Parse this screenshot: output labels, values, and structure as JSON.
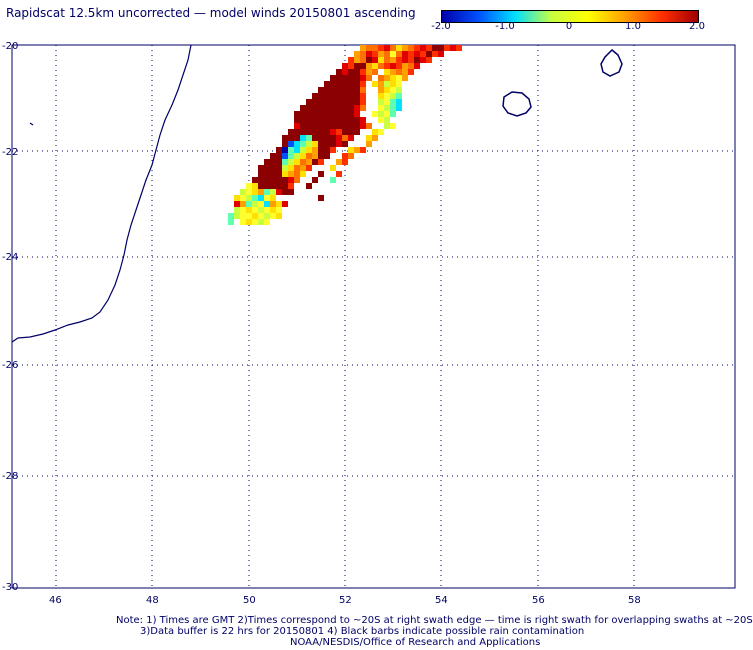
{
  "title": "Rapidscat 12.5km uncorrected — model winds 20150801 ascending",
  "colorbar": {
    "min": -2.0,
    "max": 2.0,
    "ticks": [
      "-2.0",
      "-1.0",
      "0",
      "1.0",
      "2.0"
    ],
    "colors": [
      "#0000aa",
      "#0050ff",
      "#00e0ff",
      "#c8ff40",
      "#ffff00",
      "#ffa000",
      "#ff3000",
      "#a00000"
    ]
  },
  "map": {
    "lon_range": [
      45.5,
      59.5
    ],
    "lat_range": [
      -30,
      -20
    ],
    "lon_ticks": [
      "46",
      "48",
      "50",
      "52",
      "54",
      "56",
      "58"
    ],
    "lat_ticks": [
      "-20",
      "-22",
      "-24",
      "-26",
      "-28",
      "-30"
    ],
    "coast_color": "#000066",
    "grid_color": "#000066"
  },
  "footer": {
    "line1": "Note: 1) Times are GMT 2)Times correspond to ~20S at right swath edge — time is right swath for overlapping swaths at ~20S",
    "line2": "3)Data buffer is 22 hrs for 20150801 4) Black barbs indicate possible rain contamination",
    "line3": "NOAA/NESDIS/Office of Research and Applications"
  }
}
